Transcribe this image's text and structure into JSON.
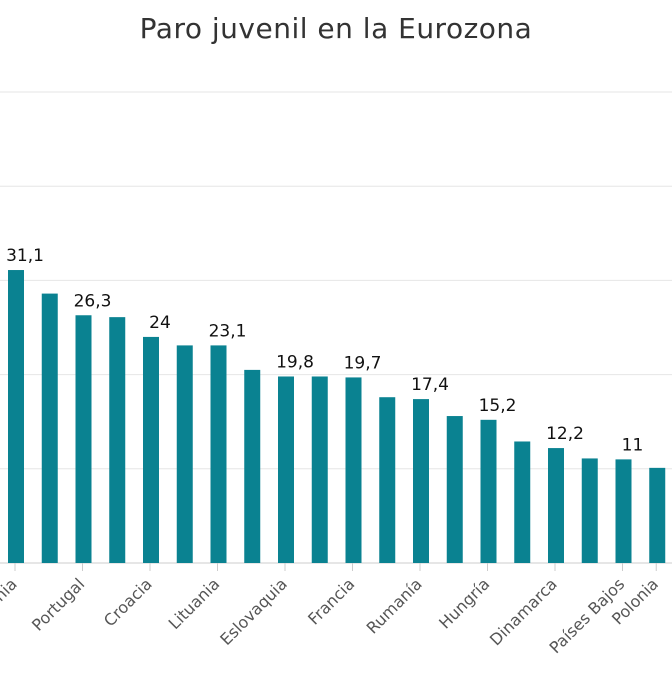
{
  "chart_data": {
    "type": "bar",
    "title": "Paro juvenil en la Eurozona",
    "xlabel": "",
    "ylabel": "",
    "ylim": [
      0,
      50
    ],
    "grid": true,
    "bar_color": "#0a8291",
    "values": [
      31.1,
      28.6,
      26.3,
      26.1,
      24,
      23.1,
      23.1,
      20.5,
      19.8,
      19.8,
      19.7,
      17.6,
      17.4,
      15.6,
      15.2,
      12.9,
      12.2,
      11.1,
      11,
      10.1
    ],
    "data_labels": [
      "31,1",
      "",
      "26,3",
      "",
      "24",
      "",
      "23,1",
      "",
      "19,8",
      "",
      "19,7",
      "",
      "17,4",
      "",
      "15,2",
      "",
      "12,2",
      "",
      "11",
      ""
    ],
    "tick_labels": [
      "Letonia",
      "",
      "Portugal",
      "",
      "Croacia",
      "",
      "Lituania",
      "",
      "Eslovaquia",
      "",
      "Francia",
      "",
      "Rumanía",
      "",
      "Hungría",
      "",
      "Dinamarca",
      "",
      "Países Bajos",
      "Polonia"
    ]
  }
}
